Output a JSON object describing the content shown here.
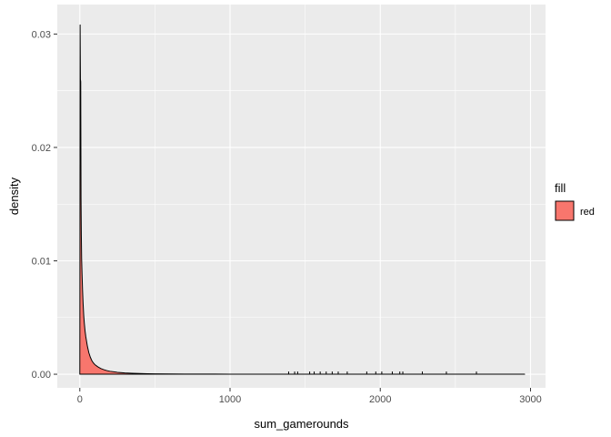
{
  "chart_data": {
    "type": "area",
    "xlabel": "sum_gamerounds",
    "ylabel": "density",
    "xlim": [
      -150,
      3100
    ],
    "ylim": [
      -0.0012,
      0.0326
    ],
    "x_ticks": [
      0,
      1000,
      2000,
      3000
    ],
    "x_tick_labels": [
      "0",
      "1000",
      "2000",
      "3000"
    ],
    "y_ticks": [
      0,
      0.01,
      0.02,
      0.03
    ],
    "y_tick_labels": [
      "0.00",
      "0.01",
      "0.02",
      "0.03"
    ],
    "grid": true,
    "legend": {
      "title": "fill",
      "position": "right",
      "entries": [
        {
          "label": "red",
          "color": "#F8766D"
        }
      ]
    },
    "colors": {
      "panel": "#EBEBEB",
      "grid_major": "#FFFFFF",
      "fill": "#F8766D",
      "outline": "#000000"
    },
    "series": [
      {
        "x": [
          0,
          2,
          4,
          6,
          8,
          10,
          12,
          15,
          18,
          22,
          26,
          30,
          35,
          40,
          45,
          50,
          60,
          70,
          80,
          90,
          100,
          120,
          140,
          160,
          180,
          200,
          250,
          300,
          350,
          400,
          450,
          500,
          600,
          700,
          800,
          900,
          1000,
          1200,
          1400,
          1600,
          1800,
          2000,
          2200,
          2400,
          2600,
          2800,
          2961
        ],
        "y": [
          0,
          0.0308,
          0.026,
          0.0258,
          0.0155,
          0.0123,
          0.0102,
          0.0088,
          0.0075,
          0.0062,
          0.0052,
          0.0045,
          0.0038,
          0.0033,
          0.0029,
          0.0025,
          0.0019,
          0.0015,
          0.0012,
          0.001,
          0.00085,
          0.00065,
          0.0005,
          0.0004,
          0.00032,
          0.00026,
          0.00017,
          0.00011,
          8e-05,
          6e-05,
          4e-05,
          3e-05,
          2e-05,
          1.5e-05,
          1e-05,
          1e-05,
          8e-06,
          6e-06,
          5e-06,
          4e-06,
          3e-06,
          3e-06,
          2e-06,
          2e-06,
          2e-06,
          1e-06,
          0
        ]
      }
    ],
    "spikes": [
      1390,
      1430,
      1450,
      1530,
      1560,
      1600,
      1640,
      1680,
      1720,
      1780,
      1910,
      1970,
      2010,
      2080,
      2130,
      2150,
      2280,
      2440,
      2640
    ]
  }
}
